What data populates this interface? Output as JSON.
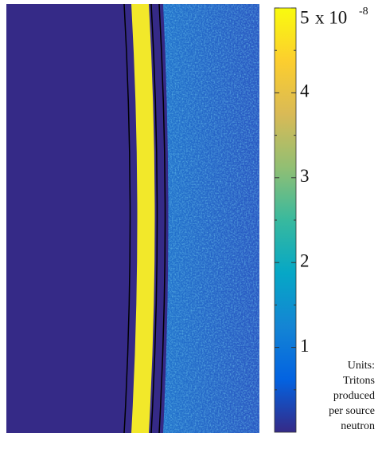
{
  "chart_data": {
    "type": "heatmap",
    "colorbar": {
      "lim": [
        0,
        5
      ],
      "ticks": [
        1,
        2,
        3,
        4,
        5
      ],
      "minor_ticks": [
        0.5,
        1.5,
        2.5,
        3.5,
        4.5
      ],
      "multiplier": "x 10",
      "multiplier_exponent": "-8",
      "units": [
        "Units:",
        "Tritons",
        "produced",
        "per source",
        "neutron"
      ]
    }
  }
}
